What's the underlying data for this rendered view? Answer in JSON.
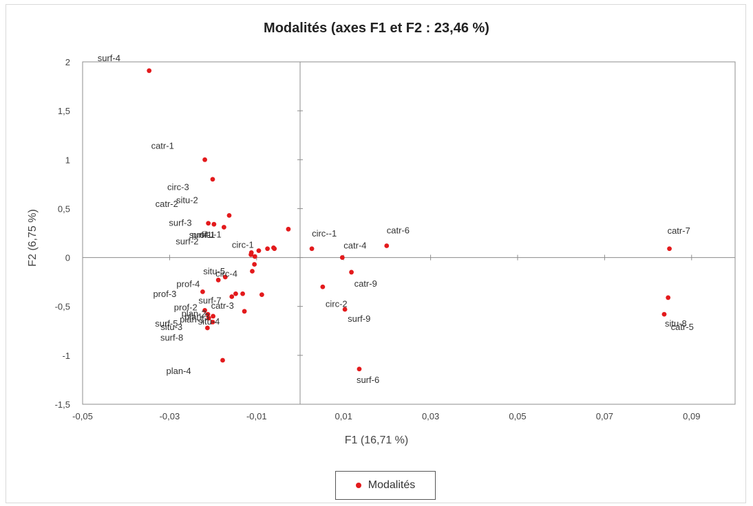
{
  "chart_data": {
    "type": "scatter",
    "title": "Modalités (axes F1 et F2 : 23,46 %)",
    "xlabel": "F1 (16,71 %)",
    "ylabel": "F2 (6,75 %)",
    "xlim": [
      -0.05,
      0.1
    ],
    "ylim": [
      -1.5,
      2
    ],
    "xticks": [
      {
        "v": -0.05,
        "label": "-0,05"
      },
      {
        "v": -0.03,
        "label": "-0,03"
      },
      {
        "v": -0.01,
        "label": "-0,01"
      },
      {
        "v": 0.01,
        "label": "0,01"
      },
      {
        "v": 0.03,
        "label": "0,03"
      },
      {
        "v": 0.05,
        "label": "0,05"
      },
      {
        "v": 0.07,
        "label": "0,07"
      },
      {
        "v": 0.09,
        "label": "0,09"
      }
    ],
    "yticks": [
      {
        "v": -1.5,
        "label": "-1,5"
      },
      {
        "v": -1,
        "label": "-1"
      },
      {
        "v": -0.5,
        "label": "-0,5"
      },
      {
        "v": 0,
        "label": "0"
      },
      {
        "v": 0.5,
        "label": "0,5"
      },
      {
        "v": 1,
        "label": "1"
      },
      {
        "v": 1.5,
        "label": "1,5"
      },
      {
        "v": 2,
        "label": "2"
      }
    ],
    "grid": false,
    "legend_position": "bottom",
    "series": [
      {
        "name": "Modalités",
        "color": "#e31a1c",
        "points": [
          {
            "label": "surf-4",
            "x": -0.0347,
            "y": 1.91
          },
          {
            "label": "catr-1",
            "x": -0.0219,
            "y": 1.0
          },
          {
            "label": "circ-3",
            "x": -0.0201,
            "y": 0.8
          },
          {
            "label": "situ-2",
            "x": -0.0163,
            "y": 0.43
          },
          {
            "label": "catr-2",
            "x": -0.0211,
            "y": 0.35
          },
          {
            "label": "surf-3",
            "x": -0.0175,
            "y": 0.31
          },
          {
            "label": "circ-1",
            "x": -0.0027,
            "y": 0.29
          },
          {
            "label": "situ-1",
            "x": -0.0095,
            "y": 0.07
          },
          {
            "label": "prof-1",
            "x": -0.0075,
            "y": 0.09
          },
          {
            "label": "surf-1",
            "x": -0.0059,
            "y": 0.09
          },
          {
            "label": "surf-2",
            "x": -0.0112,
            "y": 0.05
          },
          {
            "label": "circ--1",
            "x": 0.0027,
            "y": 0.09
          },
          {
            "label": "catr-4",
            "x": 0.0097,
            "y": 0.0
          },
          {
            "label": "catr-6",
            "x": 0.0199,
            "y": 0.12
          },
          {
            "label": "catr-7",
            "x": 0.0849,
            "y": 0.09
          },
          {
            "label": "situ-5",
            "x": -0.0172,
            "y": -0.2
          },
          {
            "label": "circ-4",
            "x": -0.0188,
            "y": -0.23
          },
          {
            "label": "prof-4",
            "x": -0.0224,
            "y": -0.35
          },
          {
            "label": "prof-3",
            "x": -0.0148,
            "y": -0.37
          },
          {
            "label": "prof-2",
            "x": -0.0157,
            "y": -0.4
          },
          {
            "label": "catr-3",
            "x": -0.0132,
            "y": -0.37
          },
          {
            "label": "surf-7",
            "x": -0.0088,
            "y": -0.38
          },
          {
            "label": "plan-1",
            "x": -0.0128,
            "y": -0.55
          },
          {
            "label": "plan-2",
            "x": -0.0219,
            "y": -0.54
          },
          {
            "label": "plan-3",
            "x": -0.0212,
            "y": -0.58
          },
          {
            "label": "situ-4",
            "x": -0.02,
            "y": -0.6
          },
          {
            "label": "surf-5",
            "x": -0.021,
            "y": -0.62
          },
          {
            "label": "situ-3",
            "x": -0.0213,
            "y": -0.72
          },
          {
            "label": "surf-8",
            "x": -0.0201,
            "y": -0.66
          },
          {
            "label": "plan-4",
            "x": -0.0178,
            "y": -1.05
          },
          {
            "label": "circ-2",
            "x": 0.0052,
            "y": -0.3
          },
          {
            "label": "catr-9",
            "x": 0.0118,
            "y": -0.15
          },
          {
            "label": "surf-9",
            "x": 0.0103,
            "y": -0.53
          },
          {
            "label": "surf-6",
            "x": 0.0136,
            "y": -1.14
          },
          {
            "label": "catr-5",
            "x": 0.0846,
            "y": -0.41
          },
          {
            "label": "situ-8",
            "x": 0.0837,
            "y": -0.58
          }
        ]
      }
    ],
    "extra_points": [
      {
        "x": -0.011,
        "y": -0.14
      },
      {
        "x": -0.0105,
        "y": -0.07
      },
      {
        "x": -0.0104,
        "y": 0.01
      },
      {
        "x": -0.0113,
        "y": 0.03
      },
      {
        "x": -0.0061,
        "y": 0.1
      },
      {
        "x": -0.0198,
        "y": 0.34
      }
    ]
  }
}
